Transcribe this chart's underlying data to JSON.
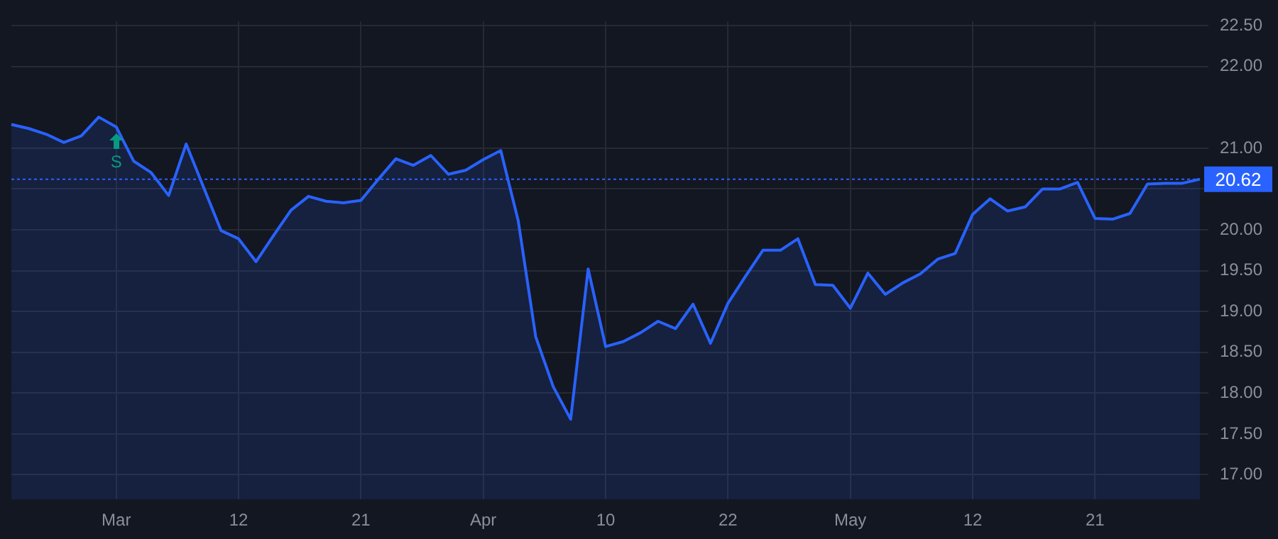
{
  "chart_data": {
    "type": "area",
    "categories": [
      null,
      null,
      null,
      null,
      null,
      null,
      "Mar",
      null,
      null,
      null,
      null,
      null,
      null,
      "12",
      null,
      null,
      null,
      null,
      null,
      null,
      "21",
      null,
      null,
      null,
      null,
      null,
      null,
      "Apr",
      null,
      null,
      null,
      null,
      null,
      null,
      "10",
      null,
      null,
      null,
      null,
      null,
      null,
      "22",
      null,
      null,
      null,
      null,
      null,
      null,
      "May",
      null,
      null,
      null,
      null,
      null,
      null,
      "12",
      null,
      null,
      null,
      null,
      null,
      null,
      "21",
      null,
      null,
      null,
      null,
      null,
      null
    ],
    "series": [
      {
        "color": "#2962ff",
        "values": [
          21.29,
          21.24,
          21.17,
          21.07,
          21.15,
          21.38,
          21.26,
          20.84,
          20.7,
          20.42,
          21.05,
          20.52,
          19.99,
          19.89,
          19.61,
          19.93,
          20.24,
          20.41,
          20.35,
          20.33,
          20.36,
          20.62,
          20.87,
          20.79,
          20.91,
          20.68,
          20.73,
          20.86,
          20.97,
          20.11,
          18.69,
          18.08,
          17.68,
          19.52,
          18.57,
          18.63,
          18.74,
          18.88,
          18.79,
          19.09,
          18.61,
          19.1,
          19.43,
          19.75,
          19.75,
          19.89,
          19.33,
          19.32,
          19.04,
          19.47,
          19.21,
          19.35,
          19.46,
          19.64,
          19.71,
          20.19,
          20.38,
          20.23,
          20.28,
          20.5,
          20.5,
          20.58,
          20.14,
          20.13,
          20.2,
          20.56,
          20.57,
          20.57,
          20.62
        ]
      }
    ],
    "ylim": [
      16.7,
      22.55
    ],
    "yticks": [
      {
        "value": 17,
        "label": "17.00"
      },
      {
        "value": 17.5,
        "label": "17.50"
      },
      {
        "value": 18,
        "label": "18.00"
      },
      {
        "value": 18.5,
        "label": "18.50"
      },
      {
        "value": 19,
        "label": "19.00"
      },
      {
        "value": 19.5,
        "label": "19.50"
      },
      {
        "value": 20,
        "label": "20.00"
      },
      {
        "value": 20.5,
        "label": null
      },
      {
        "value": 21,
        "label": "21.00"
      },
      {
        "value": 22,
        "label": "22.00"
      },
      {
        "value": 22.5,
        "label": "22.50"
      }
    ],
    "grid": true,
    "marker": "none",
    "ref_lines": [
      {
        "axis": "y",
        "value": 20.62,
        "label": "20.62",
        "color": "#2962ff",
        "line_style": "dotted"
      }
    ],
    "annotations": [
      {
        "text": "S",
        "x": "Mar",
        "y": 21.26
      }
    ]
  }
}
